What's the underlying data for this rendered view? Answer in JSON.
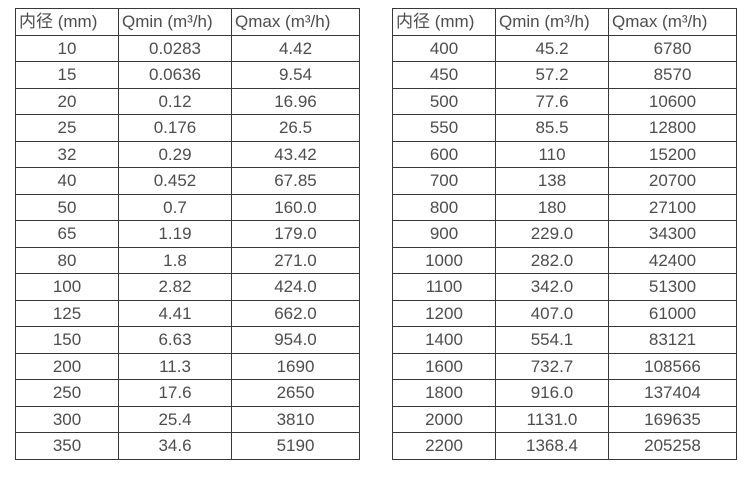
{
  "colors": {
    "background": "#ffffff",
    "border": "#383838",
    "text": "#4d4d4d"
  },
  "columns": [
    "内径 (mm)",
    "Qmin (m³/h)",
    "Qmax (m³/h)"
  ],
  "chart_data": [
    {
      "type": "table",
      "title": "",
      "columns": [
        "内径 (mm)",
        "Qmin (m³/h)",
        "Qmax (m³/h)"
      ],
      "rows": [
        [
          "10",
          "0.0283",
          "4.42"
        ],
        [
          "15",
          "0.0636",
          "9.54"
        ],
        [
          "20",
          "0.12",
          "16.96"
        ],
        [
          "25",
          "0.176",
          "26.5"
        ],
        [
          "32",
          "0.29",
          "43.42"
        ],
        [
          "40",
          "0.452",
          "67.85"
        ],
        [
          "50",
          "0.7",
          "160.0"
        ],
        [
          "65",
          "1.19",
          "179.0"
        ],
        [
          "80",
          "1.8",
          "271.0"
        ],
        [
          "100",
          "2.82",
          "424.0"
        ],
        [
          "125",
          "4.41",
          "662.0"
        ],
        [
          "150",
          "6.63",
          "954.0"
        ],
        [
          "200",
          "11.3",
          "1690"
        ],
        [
          "250",
          "17.6",
          "2650"
        ],
        [
          "300",
          "25.4",
          "3810"
        ],
        [
          "350",
          "34.6",
          "5190"
        ]
      ]
    },
    {
      "type": "table",
      "title": "",
      "columns": [
        "内径 (mm)",
        "Qmin (m³/h)",
        "Qmax (m³/h)"
      ],
      "rows": [
        [
          "400",
          "45.2",
          "6780"
        ],
        [
          "450",
          "57.2",
          "8570"
        ],
        [
          "500",
          "77.6",
          "10600"
        ],
        [
          "550",
          "85.5",
          "12800"
        ],
        [
          "600",
          "110",
          "15200"
        ],
        [
          "700",
          "138",
          "20700"
        ],
        [
          "800",
          "180",
          "27100"
        ],
        [
          "900",
          "229.0",
          "34300"
        ],
        [
          "1000",
          "282.0",
          "42400"
        ],
        [
          "1100",
          "342.0",
          "51300"
        ],
        [
          "1200",
          "407.0",
          "61000"
        ],
        [
          "1400",
          "554.1",
          "83121"
        ],
        [
          "1600",
          "732.7",
          "108566"
        ],
        [
          "1800",
          "916.0",
          "137404"
        ],
        [
          "2000",
          "1131.0",
          "169635"
        ],
        [
          "2200",
          "1368.4",
          "205258"
        ]
      ]
    }
  ]
}
